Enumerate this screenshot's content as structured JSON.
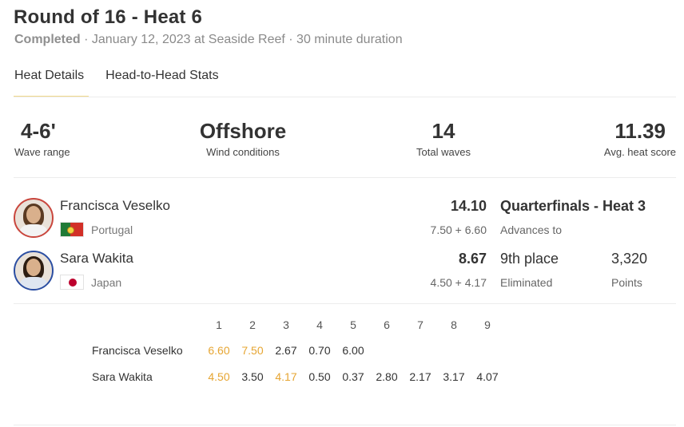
{
  "header": {
    "title": "Round of 16 - Heat 6",
    "status": "Completed",
    "details": " · January 12, 2023 at Seaside Reef · 30 minute duration"
  },
  "tabs": [
    {
      "label": "Heat Details",
      "active": true
    },
    {
      "label": "Head-to-Head Stats",
      "active": false
    }
  ],
  "stats": [
    {
      "value": "4-6'",
      "label": "Wave range"
    },
    {
      "value": "Offshore",
      "label": "Wind conditions"
    },
    {
      "value": "14",
      "label": "Total waves"
    },
    {
      "value": "11.39",
      "label": "Avg. heat score"
    }
  ],
  "surfers": [
    {
      "name": "Francisca Veselko",
      "country": "Portugal",
      "flag": "portugal-flag-icon",
      "total": "14.10",
      "breakdown": "7.50 + 6.60",
      "outcome": "Quarterfinals - Heat 3",
      "outcome_label": "Advances to"
    },
    {
      "name": "Sara Wakita",
      "country": "Japan",
      "flag": "japan-flag-icon",
      "total": "8.67",
      "breakdown": "4.50 + 4.17",
      "outcome": "9th place",
      "outcome_label": "Eliminated",
      "points": "3,320",
      "points_label": "Points"
    }
  ],
  "wave_table": {
    "columns": [
      "1",
      "2",
      "3",
      "4",
      "5",
      "6",
      "7",
      "8",
      "9"
    ],
    "highlight_color": "#e6a532",
    "rows": [
      {
        "name": "Francisca Veselko",
        "scores": [
          "6.60",
          "7.50",
          "2.67",
          "0.70",
          "6.00",
          "",
          "",
          "",
          ""
        ],
        "counting": [
          0,
          1
        ]
      },
      {
        "name": "Sara Wakita",
        "scores": [
          "4.50",
          "3.50",
          "4.17",
          "0.50",
          "0.37",
          "2.80",
          "2.17",
          "3.17",
          "4.07"
        ],
        "counting": [
          0,
          2
        ]
      }
    ]
  }
}
